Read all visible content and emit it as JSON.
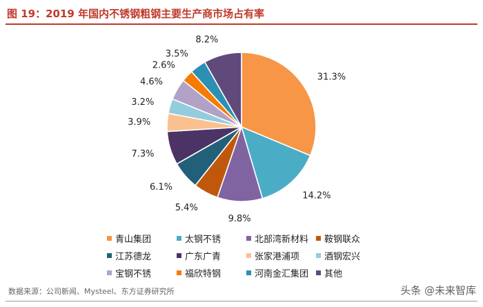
{
  "title": "图 19：2019 年国内不锈钢粗钢主要生产商市场占有率",
  "source": "数据来源：公司新闻、Mysteel、东方证券研究所",
  "watermark": "头条 @未来智库",
  "chart_data": {
    "type": "pie",
    "start": "12 o'clock",
    "direction": "clockwise",
    "legend_position": "bottom",
    "slices": [
      {
        "name": "青山集团",
        "value": 31.3,
        "label": "31.3%",
        "color": "#F79646"
      },
      {
        "name": "太钢不锈",
        "value": 14.2,
        "label": "14.2%",
        "color": "#4BACC6"
      },
      {
        "name": "北部湾新材料",
        "value": 9.8,
        "label": "9.8%",
        "color": "#8064A2"
      },
      {
        "name": "鞍钢联众",
        "value": 5.4,
        "label": "5.4%",
        "color": "#C0580C"
      },
      {
        "name": "江苏德龙",
        "value": 6.1,
        "label": "6.1%",
        "color": "#22607A"
      },
      {
        "name": "广东广青",
        "value": 7.3,
        "label": "7.3%",
        "color": "#4B3366"
      },
      {
        "name": "张家港浦项",
        "value": 3.9,
        "label": "3.9%",
        "color": "#FAC090"
      },
      {
        "name": "酒钢宏兴",
        "value": 3.2,
        "label": "3.2%",
        "color": "#93CDDD"
      },
      {
        "name": "宝钢不锈",
        "value": 4.6,
        "label": "4.6%",
        "color": "#B2A1C7"
      },
      {
        "name": "福欣特钢",
        "value": 2.6,
        "label": "2.6%",
        "color": "#F57C00"
      },
      {
        "name": "河南金汇集团",
        "value": 3.5,
        "label": "3.5%",
        "color": "#2E8FB5"
      },
      {
        "name": "其他",
        "value": 8.2,
        "label": "8.2%",
        "color": "#604A7B"
      }
    ]
  }
}
